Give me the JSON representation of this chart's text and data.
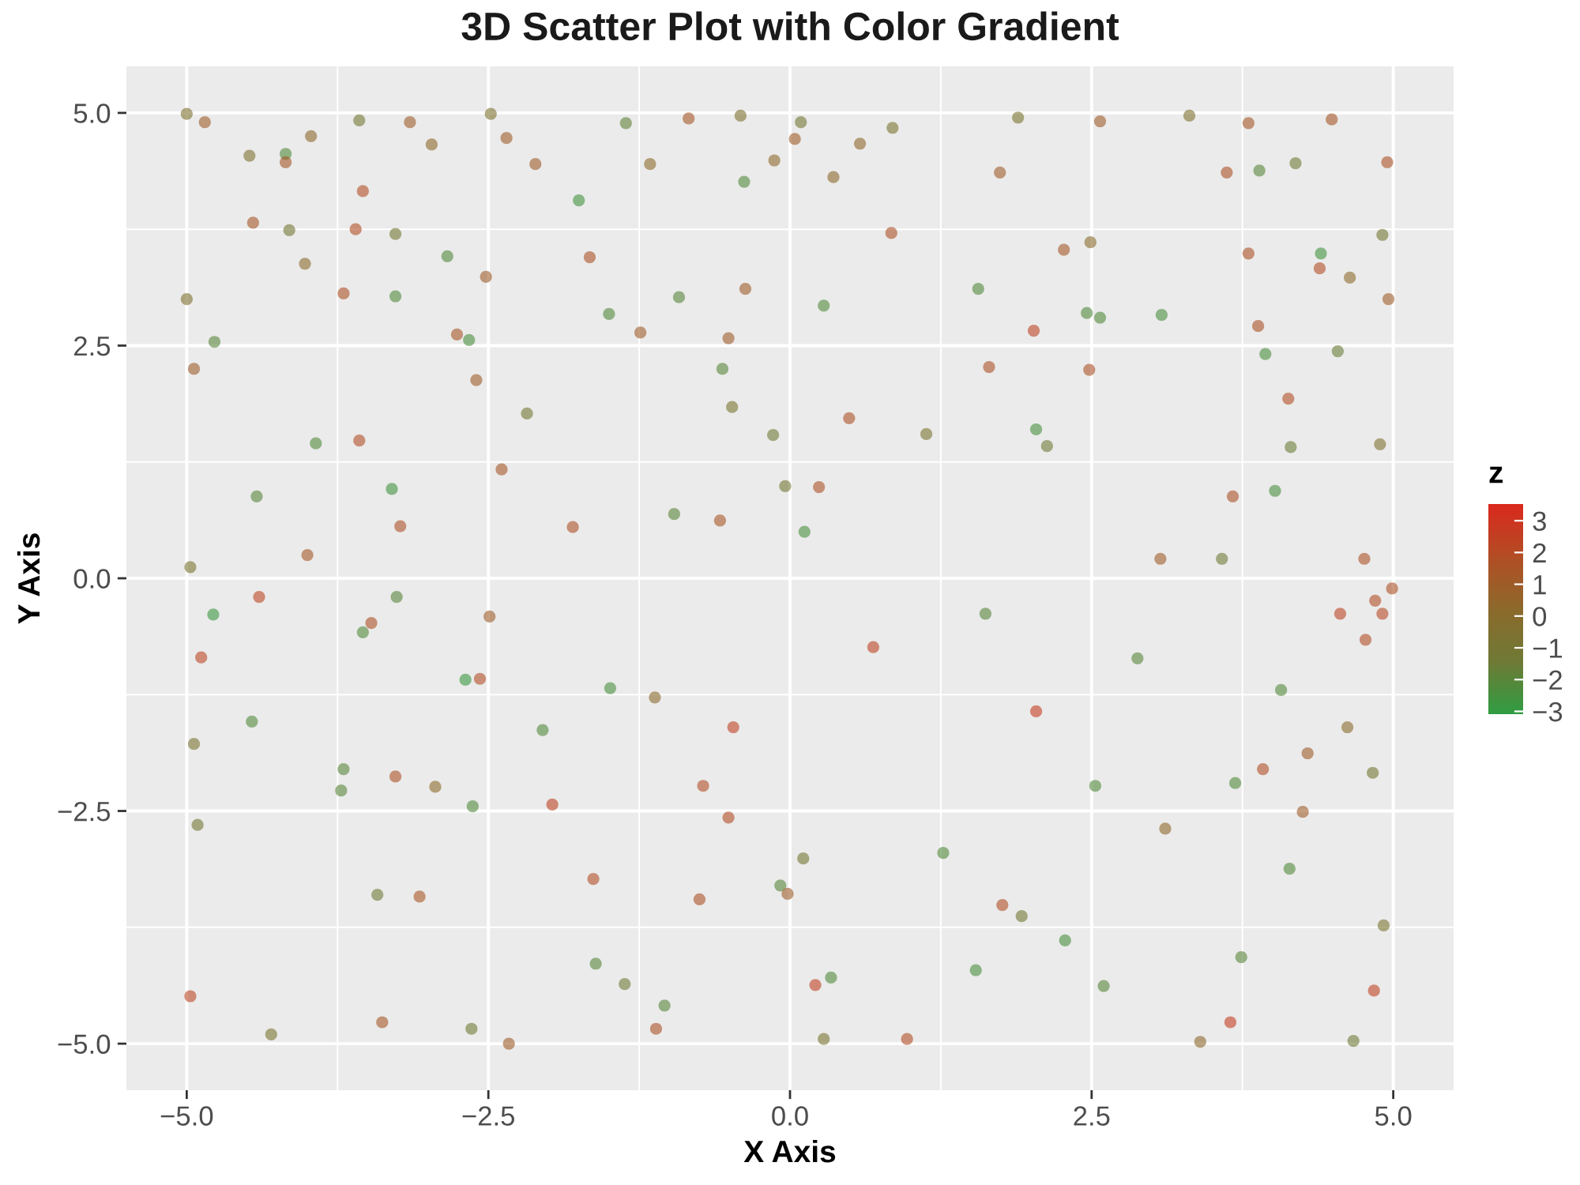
{
  "chart_data": {
    "type": "scatter",
    "title": "3D Scatter Plot with Color Gradient",
    "xlabel": "X Axis",
    "ylabel": "Y Axis",
    "clabel": "z",
    "marker": "circle",
    "grid": true,
    "xlim": [
      -5.5,
      5.5
    ],
    "ylim": [
      -5.5,
      5.5
    ],
    "xticks": [
      {
        "value": -5,
        "label": "−5.0"
      },
      {
        "value": -2.5,
        "label": "−2.5"
      },
      {
        "value": 0,
        "label": "0.0"
      },
      2.5,
      {
        "value": 5,
        "label": "5.0"
      }
    ],
    "yticks": [
      {
        "value": -5,
        "label": "−5.0"
      },
      {
        "value": -2.5,
        "label": "−2.5"
      },
      {
        "value": 0,
        "label": "0.0"
      },
      2.5,
      {
        "value": 5,
        "label": "5.0"
      }
    ],
    "clim": [
      -3.1,
      3.5
    ],
    "cticks": [
      {
        "value": -3,
        "label": "−3"
      },
      {
        "value": -2,
        "label": "−2"
      },
      {
        "value": -1,
        "label": "−1"
      },
      0,
      1,
      2,
      3
    ],
    "x": [
      -5.0,
      -4.85,
      -4.48,
      -4.18,
      -4.18,
      -3.97,
      -3.57,
      -3.15,
      -3.54,
      -2.97,
      -2.48,
      -2.35,
      -2.11,
      -1.75,
      -1.36,
      -0.84,
      -0.41,
      -0.38,
      -0.13,
      -4.45,
      -4.15,
      -3.6,
      -3.27,
      -5.0,
      -3.7,
      -3.27,
      -2.52,
      -2.84,
      -1.66,
      -1.5,
      -0.92,
      -0.37,
      -4.77,
      -2.66,
      -2.76,
      -4.94,
      -3.57,
      -3.93,
      -2.6,
      -1.24,
      -0.51,
      -0.56,
      -0.48,
      -0.14,
      -3.3,
      -4.42,
      -4.0,
      -3.23,
      -1.8,
      -0.58,
      -0.96,
      -4.97,
      -2.39,
      -2.18,
      -0.04,
      0.09,
      0.04,
      0.85,
      0.58,
      1.89,
      2.57,
      3.31,
      3.8,
      4.49,
      4.95,
      3.89,
      4.19,
      3.62,
      1.74,
      0.36,
      0.84,
      1.56,
      0.28,
      2.02,
      2.46,
      2.57,
      3.08,
      4.4,
      4.39,
      3.8,
      2.27,
      4.91,
      4.96,
      3.88,
      3.94,
      4.54,
      1.65,
      2.48,
      0.49,
      2.04,
      2.13,
      4.13,
      4.15,
      4.02,
      0.12,
      3.67,
      4.76,
      4.89,
      3.58,
      3.07,
      1.13,
      0.24,
      -4.4,
      -4.78,
      -4.88,
      -4.46,
      -4.94,
      -3.54,
      -3.26,
      -3.47,
      -2.69,
      -2.57,
      -2.49,
      -3.7,
      -3.72,
      -3.27,
      -3.07,
      -3.42,
      -2.63,
      -1.97,
      -2.05,
      -1.49,
      -0.47,
      -0.72,
      -0.51,
      -1.63,
      -0.75,
      -4.97,
      -4.3,
      -2.64,
      -2.33,
      -1.61,
      -1.04,
      -1.11,
      -3.38,
      -4.91,
      -0.08,
      -1.37,
      0.69,
      2.04,
      2.53,
      3.69,
      3.92,
      4.07,
      4.56,
      4.91,
      4.99,
      4.85,
      4.77,
      1.62,
      2.88,
      1.27,
      4.14,
      2.28,
      1.76,
      1.92,
      0.21,
      0.34,
      1.54,
      0.97,
      3.65,
      4.84,
      3.74,
      4.67,
      3.4,
      0.28,
      4.92,
      4.29,
      4.25,
      0.11,
      -0.02,
      2.6,
      4.83,
      -4.02,
      -1.16,
      2.49,
      4.64,
      -1.12,
      -2.94,
      3.11,
      4.62
    ],
    "values": [
      4.99,
      4.9,
      4.54,
      4.56,
      4.47,
      4.75,
      4.92,
      4.9,
      4.16,
      4.66,
      4.99,
      4.73,
      4.45,
      4.06,
      4.89,
      4.94,
      4.97,
      4.26,
      4.49,
      3.82,
      3.74,
      3.75,
      3.7,
      3.0,
      3.06,
      3.03,
      3.24,
      3.46,
      3.45,
      2.84,
      3.02,
      3.11,
      2.54,
      2.56,
      2.62,
      2.25,
      1.48,
      1.45,
      2.13,
      2.64,
      2.58,
      2.25,
      1.84,
      1.54,
      0.96,
      0.88,
      0.25,
      0.56,
      0.55,
      0.62,
      0.69,
      0.12,
      1.17,
      1.77,
      0.99,
      4.9,
      4.72,
      4.84,
      4.67,
      4.95,
      4.91,
      4.97,
      4.89,
      4.93,
      4.47,
      4.38,
      4.46,
      4.36,
      4.36,
      4.31,
      3.71,
      3.11,
      2.93,
      2.66,
      2.85,
      2.8,
      2.83,
      3.49,
      3.33,
      3.49,
      3.53,
      3.69,
      3.0,
      2.71,
      2.41,
      2.44,
      2.27,
      2.24,
      1.72,
      1.6,
      1.42,
      1.93,
      1.41,
      0.94,
      0.5,
      0.88,
      0.21,
      1.44,
      0.21,
      0.21,
      1.55,
      0.98,
      -0.2,
      -0.39,
      -0.85,
      -1.54,
      -1.78,
      -0.58,
      -0.2,
      -0.48,
      -1.09,
      -1.08,
      -0.41,
      -2.05,
      -2.28,
      -2.13,
      -3.42,
      -3.4,
      -2.45,
      -2.43,
      -1.63,
      -1.18,
      -1.6,
      -2.23,
      -2.57,
      -3.23,
      -3.45,
      -4.49,
      -4.9,
      -4.84,
      -5.0,
      -4.14,
      -4.59,
      -4.84,
      -4.77,
      -2.65,
      -3.3,
      -4.36,
      -0.74,
      -1.43,
      -2.23,
      -2.2,
      -2.05,
      -1.2,
      -0.38,
      -0.38,
      -0.11,
      -0.24,
      -0.66,
      -0.38,
      -0.86,
      -2.95,
      -3.12,
      -3.89,
      -3.51,
      -3.63,
      -4.37,
      -4.29,
      -4.21,
      -4.95,
      -4.77,
      -4.43,
      -4.07,
      -4.97,
      -4.98,
      -4.95,
      -3.73,
      -1.88,
      -2.51,
      -3.01,
      -3.39,
      -4.38,
      -2.09,
      3.38,
      4.45,
      3.61,
      3.23,
      -1.28,
      -2.24,
      -2.69,
      -1.6
    ],
    "cvalues": [
      -0.6,
      1.0,
      -0.6,
      -2.2,
      1.3,
      0.3,
      -1.2,
      1.0,
      1.8,
      0.3,
      -0.6,
      1.0,
      1.0,
      -2.6,
      -1.8,
      1.3,
      -0.6,
      -2.2,
      0.3,
      1.3,
      -1.2,
      1.8,
      -1.2,
      -0.6,
      1.6,
      -2.2,
      1.0,
      -2.2,
      1.6,
      -2.2,
      -2.0,
      1.0,
      -2.0,
      -2.4,
      1.3,
      1.0,
      1.8,
      -2.2,
      1.0,
      1.0,
      1.0,
      -2.0,
      -0.8,
      -1.4,
      -2.6,
      -2.0,
      1.3,
      1.6,
      1.6,
      1.3,
      -2.0,
      -0.8,
      1.3,
      -1.2,
      -1.2,
      -1.2,
      1.0,
      -0.8,
      0.3,
      -0.8,
      1.0,
      -0.6,
      1.3,
      1.3,
      1.6,
      -2.0,
      -1.4,
      1.6,
      1.0,
      0.3,
      1.6,
      -2.2,
      -2.2,
      2.3,
      -2.2,
      -2.2,
      -2.4,
      -2.6,
      1.8,
      1.6,
      1.3,
      -1.2,
      1.0,
      1.6,
      -2.4,
      -1.6,
      1.6,
      1.6,
      1.6,
      -2.4,
      -1.4,
      1.8,
      -1.6,
      -2.4,
      -2.4,
      1.6,
      1.6,
      -0.6,
      -1.4,
      1.0,
      -0.8,
      1.6,
      2.2,
      -2.8,
      2.2,
      -2.2,
      -0.8,
      -2.2,
      -2.0,
      1.6,
      -2.8,
      1.8,
      1.0,
      -2.0,
      -2.0,
      1.6,
      1.4,
      -1.4,
      -2.2,
      2.3,
      -2.2,
      -2.4,
      2.4,
      1.8,
      1.8,
      1.8,
      1.6,
      2.2,
      -0.8,
      -1.4,
      1.0,
      -2.0,
      -2.0,
      1.6,
      1.3,
      -1.2,
      -2.0,
      -1.4,
      2.3,
      2.6,
      -2.2,
      -2.2,
      1.8,
      -2.2,
      2.2,
      2.0,
      1.6,
      1.8,
      1.8,
      -2.0,
      -2.0,
      -2.2,
      -2.2,
      -2.4,
      1.8,
      -1.2,
      2.4,
      -2.2,
      -2.4,
      1.8,
      2.6,
      2.4,
      -2.0,
      -1.4,
      0.3,
      -0.8,
      -0.8,
      1.0,
      1.0,
      -1.2,
      1.0,
      -2.0,
      -1.2,
      0.0,
      0.2,
      0.0,
      0.2,
      0.1,
      0.2,
      0.3,
      0.0
    ]
  }
}
